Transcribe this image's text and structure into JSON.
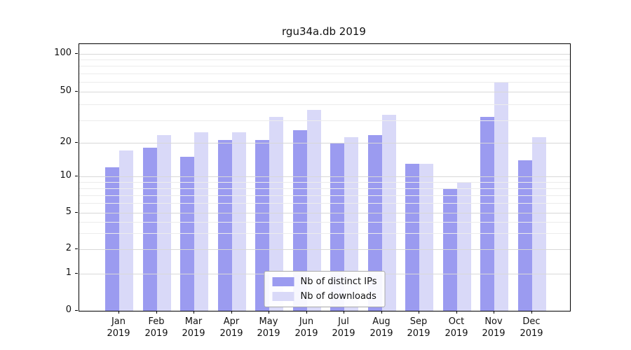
{
  "title": "rgu34a.db 2019",
  "chart_data": {
    "type": "bar",
    "title": "rgu34a.db 2019",
    "categories": [
      "Jan 2019",
      "Feb 2019",
      "Mar 2019",
      "Apr 2019",
      "May 2019",
      "Jun 2019",
      "Jul 2019",
      "Aug 2019",
      "Sep 2019",
      "Oct 2019",
      "Nov 2019",
      "Dec 2019"
    ],
    "series": [
      {
        "name": "Nb of distinct IPs",
        "color": "#9b9bf0",
        "values": [
          12,
          18,
          15,
          21,
          21,
          25,
          20,
          23,
          13,
          8,
          32,
          14
        ]
      },
      {
        "name": "Nb of downloads",
        "color": "#d9d9f8",
        "values": [
          17,
          23,
          24,
          24,
          32,
          36,
          22,
          33,
          13,
          9,
          60,
          22
        ]
      }
    ],
    "yscale": "symlog",
    "yticks": [
      0,
      1,
      2,
      5,
      10,
      20,
      50,
      100
    ],
    "ylim": [
      0,
      120
    ],
    "grid": true,
    "legend_position": "lower center"
  }
}
